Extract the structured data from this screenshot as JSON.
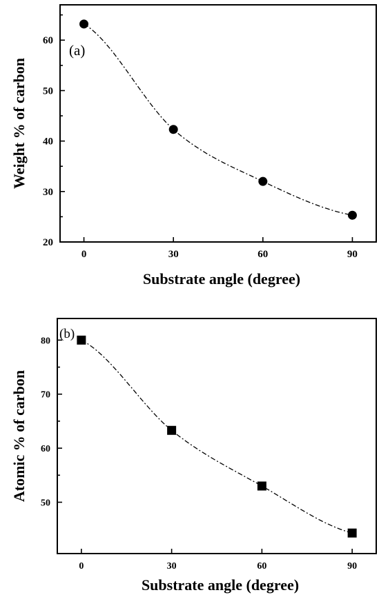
{
  "chart_data": [
    {
      "type": "scatter",
      "panel_label": "(a)",
      "marker": "circle",
      "xlabel": "Substrate angle (degree)",
      "ylabel": "Weight % of carbon",
      "x": [
        0,
        30,
        60,
        90
      ],
      "series": [
        {
          "values": [
            63.2,
            42.3,
            32.0,
            25.3
          ]
        }
      ],
      "xticks": [
        "0",
        "30",
        "60",
        "90"
      ],
      "yticks": [
        "20",
        "30",
        "40",
        "50",
        "60"
      ],
      "xlim": [
        -8,
        98
      ],
      "ylim": [
        20,
        67
      ],
      "fit_curve": "dash-dot",
      "grid": false
    },
    {
      "type": "scatter",
      "panel_label": "(b)",
      "marker": "square",
      "xlabel": "Substrate angle (degree)",
      "ylabel": "Atomic % of carbon",
      "x": [
        0,
        30,
        60,
        90
      ],
      "series": [
        {
          "values": [
            80.0,
            63.3,
            53.0,
            44.3
          ]
        }
      ],
      "xticks": [
        "0",
        "30",
        "60",
        "90"
      ],
      "yticks": [
        "50",
        "60",
        "70",
        "80"
      ],
      "xlim": [
        -8,
        98
      ],
      "ylim": [
        40.5,
        84
      ],
      "fit_curve": "dash-dot",
      "grid": false
    }
  ]
}
